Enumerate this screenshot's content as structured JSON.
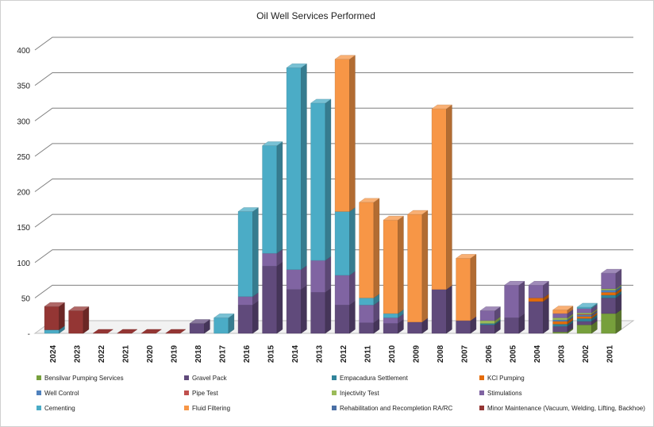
{
  "chart_data": {
    "type": "bar",
    "stacked": true,
    "style": "3d",
    "title": "Oil Well Services Performed",
    "xlabel": "",
    "ylabel": "",
    "ylim": [
      0,
      400
    ],
    "yticks": [
      "-",
      "50",
      "100",
      "150",
      "200",
      "250",
      "300",
      "350",
      "400"
    ],
    "grid": true,
    "legend_position": "bottom",
    "categories": [
      "2024",
      "2023",
      "2022",
      "2021",
      "2020",
      "2019",
      "2018",
      "2017",
      "2016",
      "2015",
      "2014",
      "2013",
      "2012",
      "2011",
      "2010",
      "2009",
      "2008",
      "2007",
      "2006",
      "2005",
      "2004",
      "2003",
      "2002",
      "2001"
    ],
    "series": [
      {
        "name": "Bensilvar Pumping Services",
        "color": "#77a03c",
        "values": [
          0,
          0,
          0,
          0,
          0,
          0,
          0,
          0,
          0,
          0,
          0,
          0,
          0,
          0,
          0,
          0,
          0,
          0,
          0,
          0,
          0,
          2,
          12,
          28
        ]
      },
      {
        "name": "Gravel Pack",
        "color": "#604a7b",
        "values": [
          0,
          0,
          0,
          0,
          0,
          0,
          14,
          0,
          40,
          95,
          62,
          58,
          40,
          15,
          14,
          16,
          62,
          18,
          12,
          22,
          45,
          8,
          5,
          22
        ]
      },
      {
        "name": "Empacadura Settlement",
        "color": "#31849b",
        "values": [
          0,
          0,
          0,
          0,
          0,
          0,
          0,
          0,
          0,
          0,
          0,
          0,
          0,
          0,
          0,
          0,
          0,
          0,
          2,
          0,
          0,
          3,
          4,
          4
        ]
      },
      {
        "name": "KCl Pumping",
        "color": "#e46c0a",
        "values": [
          0,
          0,
          0,
          0,
          0,
          0,
          0,
          0,
          0,
          0,
          0,
          0,
          0,
          0,
          0,
          0,
          0,
          0,
          0,
          0,
          5,
          4,
          3,
          4
        ]
      },
      {
        "name": "Well Control",
        "color": "#4f81bd",
        "values": [
          0,
          0,
          0,
          0,
          0,
          0,
          0,
          0,
          0,
          0,
          0,
          0,
          0,
          0,
          0,
          0,
          0,
          0,
          0,
          0,
          0,
          2,
          2,
          3
        ]
      },
      {
        "name": "Pipe Test",
        "color": "#c0504d",
        "values": [
          0,
          0,
          0,
          0,
          0,
          0,
          0,
          0,
          0,
          0,
          0,
          0,
          0,
          0,
          0,
          0,
          0,
          0,
          0,
          0,
          0,
          0,
          1,
          0
        ]
      },
      {
        "name": "Injectivity Test",
        "color": "#9bbb59",
        "values": [
          0,
          0,
          0,
          0,
          0,
          0,
          0,
          0,
          0,
          0,
          0,
          0,
          0,
          0,
          0,
          0,
          0,
          0,
          4,
          0,
          0,
          3,
          2,
          2
        ]
      },
      {
        "name": "Stimulations",
        "color": "#8064a2",
        "values": [
          0,
          0,
          0,
          0,
          0,
          0,
          0,
          0,
          12,
          18,
          28,
          45,
          42,
          25,
          8,
          0,
          0,
          0,
          14,
          46,
          18,
          6,
          6,
          22
        ]
      },
      {
        "name": "Cementing",
        "color": "#4bacc6",
        "values": [
          5,
          0,
          0,
          0,
          0,
          0,
          0,
          22,
          120,
          152,
          285,
          222,
          90,
          10,
          6,
          0,
          0,
          0,
          0,
          0,
          0,
          0,
          2,
          0
        ]
      },
      {
        "name": "Fluid Filtering",
        "color": "#f79646",
        "values": [
          0,
          0,
          0,
          0,
          0,
          0,
          0,
          0,
          0,
          0,
          0,
          0,
          215,
          135,
          132,
          152,
          255,
          88,
          0,
          0,
          0,
          5,
          0,
          0
        ]
      },
      {
        "name": "Rehabilitation and Recompletion RA/RC",
        "color": "#4a6fa5",
        "values": [
          0,
          0,
          0,
          0,
          0,
          0,
          0,
          0,
          0,
          0,
          0,
          0,
          0,
          0,
          0,
          0,
          0,
          0,
          0,
          0,
          0,
          0,
          0,
          0
        ]
      },
      {
        "name": "Minor Maintenance (Vacuum, Welding, Lifting, Backhoe)",
        "color": "#943634",
        "values": [
          33,
          32,
          0,
          0,
          0,
          0,
          0,
          0,
          0,
          0,
          0,
          0,
          0,
          0,
          0,
          0,
          0,
          0,
          0,
          0,
          0,
          0,
          0,
          0
        ]
      }
    ]
  }
}
